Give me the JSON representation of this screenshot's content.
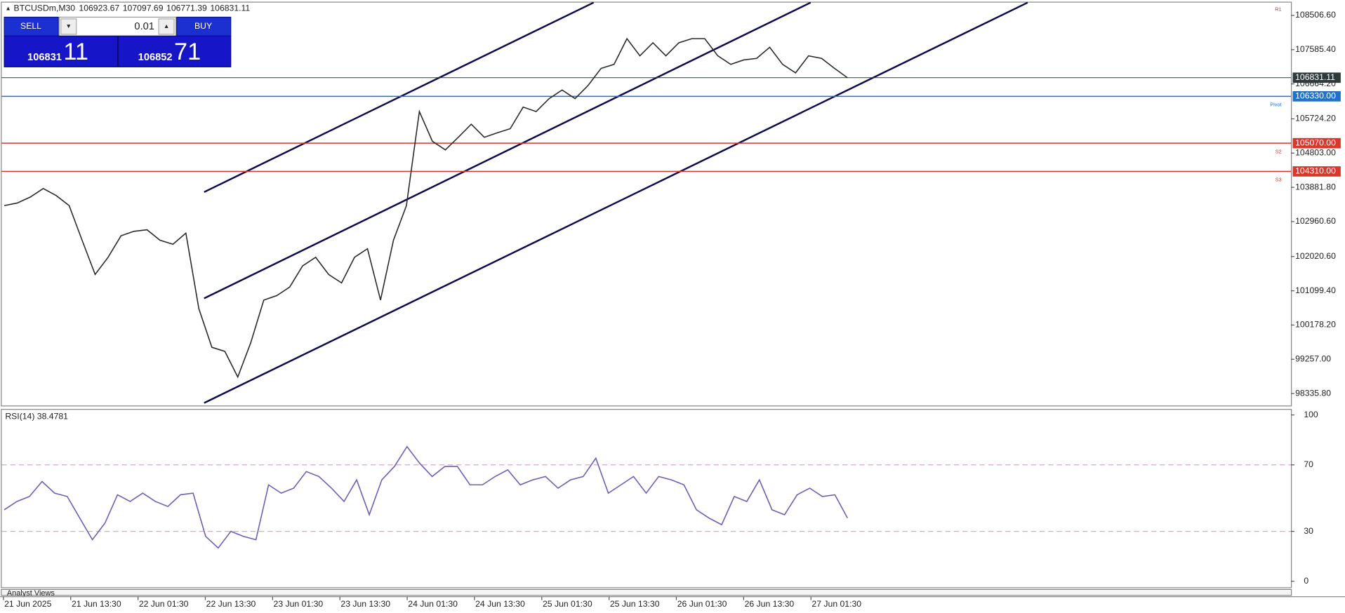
{
  "header": {
    "symbol": "BTCUSDm,M30",
    "ohlc": [
      106923.67,
      107097.69,
      106771.39,
      106831.11
    ]
  },
  "trade_panel": {
    "sell": "SELL",
    "buy": "BUY",
    "volume": "0.01",
    "bid_big": "106831",
    "bid_small": "11",
    "ask_big": "106852",
    "ask_small": "71"
  },
  "time_axis": [
    "21 Jun 2025",
    "21 Jun 13:30",
    "22 Jun 01:30",
    "22 Jun 13:30",
    "23 Jun 01:30",
    "23 Jun 13:30",
    "24 Jun 01:30",
    "24 Jun 13:30",
    "25 Jun 01:30",
    "25 Jun 13:30",
    "26 Jun 01:30",
    "26 Jun 13:30",
    "27 Jun 01:30"
  ],
  "tab": "Analyst Views",
  "chart_data": [
    {
      "type": "line",
      "color": "#2a2a2a",
      "values": [
        103390,
        103460,
        103620,
        103850,
        103660,
        103390,
        102460,
        101540,
        102000,
        102580,
        102700,
        102740,
        102460,
        102350,
        102650,
        100620,
        99580,
        99470,
        98780,
        99700,
        100850,
        100970,
        101200,
        101770,
        102000,
        101540,
        101310,
        102000,
        102230,
        100850,
        102460,
        103390,
        105920,
        105120,
        104890,
        105230,
        105580,
        105230,
        105350,
        105460,
        106040,
        105920,
        106270,
        106500,
        106270,
        106620,
        107080,
        107190,
        107880,
        107420,
        107770,
        107420,
        107770,
        107880,
        107880,
        107420,
        107190,
        107310,
        107350,
        107650,
        107190,
        106960,
        107420,
        107350,
        107080,
        106830
      ],
      "ylim": [
        98013,
        108852
      ],
      "yticks": [
        {
          "value": 108506.6,
          "label": "108506.60"
        },
        {
          "value": 107585.4,
          "label": "107585.40"
        },
        {
          "value": 106664.2,
          "label": "106664.20"
        },
        {
          "value": 105724.2,
          "label": "105724.20"
        },
        {
          "value": 104803,
          "label": "104803.00"
        },
        {
          "value": 103881.8,
          "label": "103881.80"
        },
        {
          "value": 102960.6,
          "label": "102960.60"
        },
        {
          "value": 102020.6,
          "label": "102020.60"
        },
        {
          "value": 101099.4,
          "label": "101099.40"
        },
        {
          "value": 100178.2,
          "label": "100178.20"
        },
        {
          "value": 99257,
          "label": "99257.00"
        },
        {
          "value": 98335.8,
          "label": "98335.80"
        }
      ],
      "levels": [
        {
          "value": 106831.11,
          "label": "106831.11",
          "color": "#2f3b3b"
        },
        {
          "value": 106330,
          "label": "106330.00",
          "color": "#1f72c8",
          "name": "Pivot"
        },
        {
          "value": 105070,
          "label": "105070.00",
          "color": "#d8382c",
          "name": "S2"
        },
        {
          "value": 104310,
          "label": "104310.00",
          "color": "#d8382c",
          "name": "S3"
        }
      ],
      "annotations": [
        "R1"
      ]
    },
    {
      "type": "line",
      "title": "RSI(14) 38.4781",
      "color": "#6d5fb5",
      "values": [
        43,
        48,
        51,
        60,
        53,
        51,
        38,
        25,
        35,
        52,
        48,
        53,
        48,
        45,
        52,
        53,
        27,
        20,
        30,
        27,
        25,
        58,
        53,
        56,
        66,
        63,
        56,
        48,
        61,
        40,
        61,
        69,
        81,
        71,
        63,
        69,
        69,
        58,
        58,
        63,
        67,
        58,
        61,
        63,
        56,
        61,
        63,
        74,
        53,
        58,
        63,
        53,
        63,
        61,
        58,
        43,
        38,
        34,
        51,
        48,
        61,
        43,
        40,
        52,
        56,
        51,
        52,
        38
      ],
      "ylim": [
        0,
        100
      ],
      "yticks": [
        0,
        30,
        70,
        100
      ],
      "dashed": [
        30,
        70
      ]
    }
  ]
}
